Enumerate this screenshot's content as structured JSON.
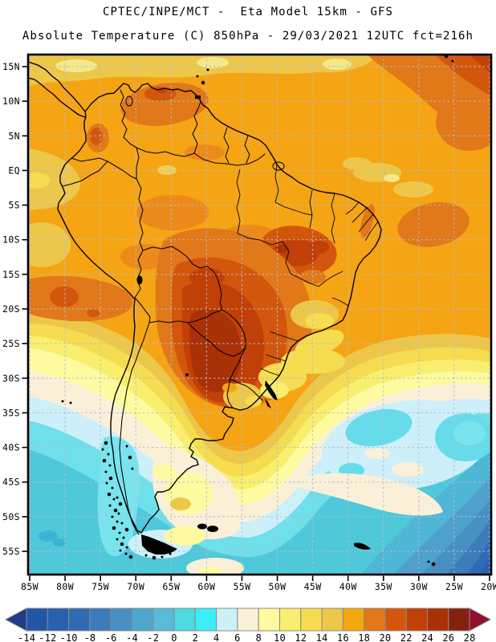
{
  "header": {
    "title_line1": "CPTEC/INPE/MCT -  Eta Model 15km - GFS",
    "title_line2": "Absolute Temperature (C) 850hPa - 29/03/2021 12UTC fct=216h"
  },
  "map": {
    "description": "Shaded-contour absolute temperature field over South America",
    "lat_tick_labels": [
      "15N",
      "10N",
      "5N",
      "EQ",
      "5S",
      "10S",
      "15S",
      "20S",
      "25S",
      "30S",
      "35S",
      "40S",
      "45S",
      "50S",
      "55S"
    ],
    "lon_tick_labels": [
      "85W",
      "80W",
      "75W",
      "70W",
      "65W",
      "60W",
      "55W",
      "50W",
      "45W",
      "40W",
      "35W",
      "30W",
      "25W",
      "20W"
    ]
  },
  "colorbar": {
    "tick_labels": [
      "-14",
      "-12",
      "-10",
      "-8",
      "-6",
      "-4",
      "-2",
      "0",
      "2",
      "4",
      "6",
      "8",
      "10",
      "12",
      "14",
      "16",
      "18",
      "20",
      "22",
      "24",
      "26",
      "28"
    ],
    "segment_colors": [
      "#2456a8",
      "#2a5fae",
      "#3069b4",
      "#3c7cba",
      "#4890c4",
      "#4fa6ce",
      "#58bcd8",
      "#4dd8e2",
      "#3deef5",
      "#cdeffa",
      "#faf0d8",
      "#fdfaa0",
      "#f9ee6e",
      "#f6dc50",
      "#edc74a",
      "#f6a60f",
      "#e1781a",
      "#d2570c",
      "#c04008",
      "#a93106",
      "#84200f"
    ],
    "left_arrow_color": "#1d3e86",
    "right_arrow_color": "#8e0e2e",
    "units": "C"
  }
}
